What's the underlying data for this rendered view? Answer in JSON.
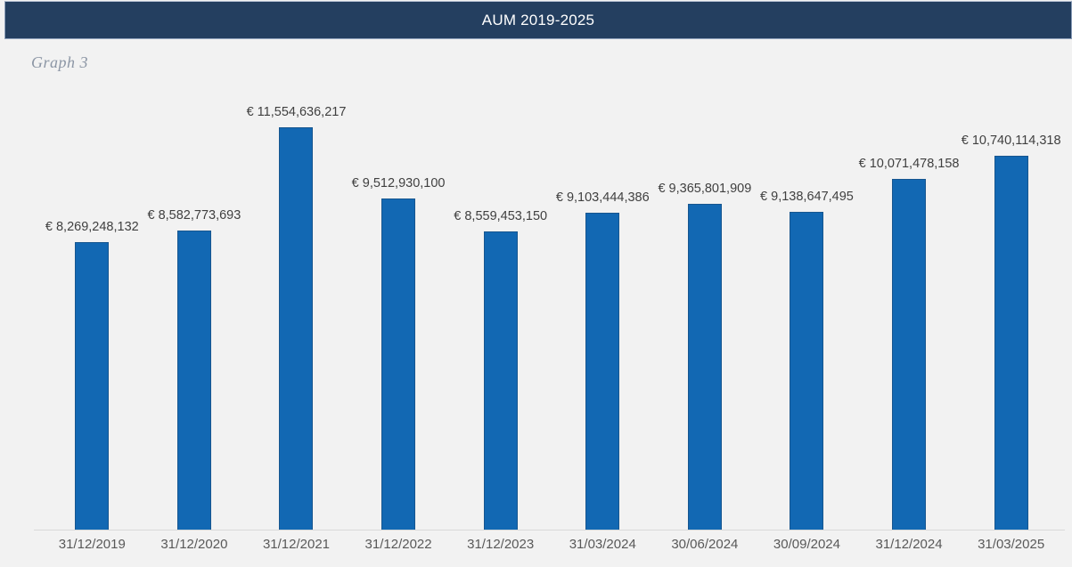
{
  "header": {
    "title": "AUM 2019-2025",
    "bg_color": "#243F60",
    "text_color": "#FFFFFF"
  },
  "caption": "Graph 3",
  "chart_data": {
    "type": "bar",
    "title": "AUM 2019-2025",
    "xlabel": "",
    "ylabel": "",
    "grid": false,
    "legend": false,
    "ylim": [
      0,
      12000000000
    ],
    "bar_color": "#1268B3",
    "bar_border_color": "#17568F",
    "value_label_color": "#404040",
    "axis_label_color": "#595959",
    "axis_line_color": "#D9D9D9",
    "background_color": "#F2F2F2",
    "categories": [
      "31/12/2019",
      "31/12/2020",
      "31/12/2021",
      "31/12/2022",
      "31/12/2023",
      "31/03/2024",
      "30/06/2024",
      "30/09/2024",
      "31/12/2024",
      "31/03/2025"
    ],
    "values": [
      8269248132,
      8582773693,
      11554636217,
      9512930100,
      8559453150,
      9103444386,
      9365801909,
      9138647495,
      10071478158,
      10740114318
    ],
    "labels": [
      "€ 8,269,248,132",
      "€ 8,582,773,693",
      "€ 11,554,636,217",
      "€ 9,512,930,100",
      "€ 8,559,453,150",
      "€ 9,103,444,386",
      "€ 9,365,801,909",
      "€ 9,138,647,495",
      "€ 10,071,478,158",
      "€ 10,740,114,318"
    ]
  }
}
